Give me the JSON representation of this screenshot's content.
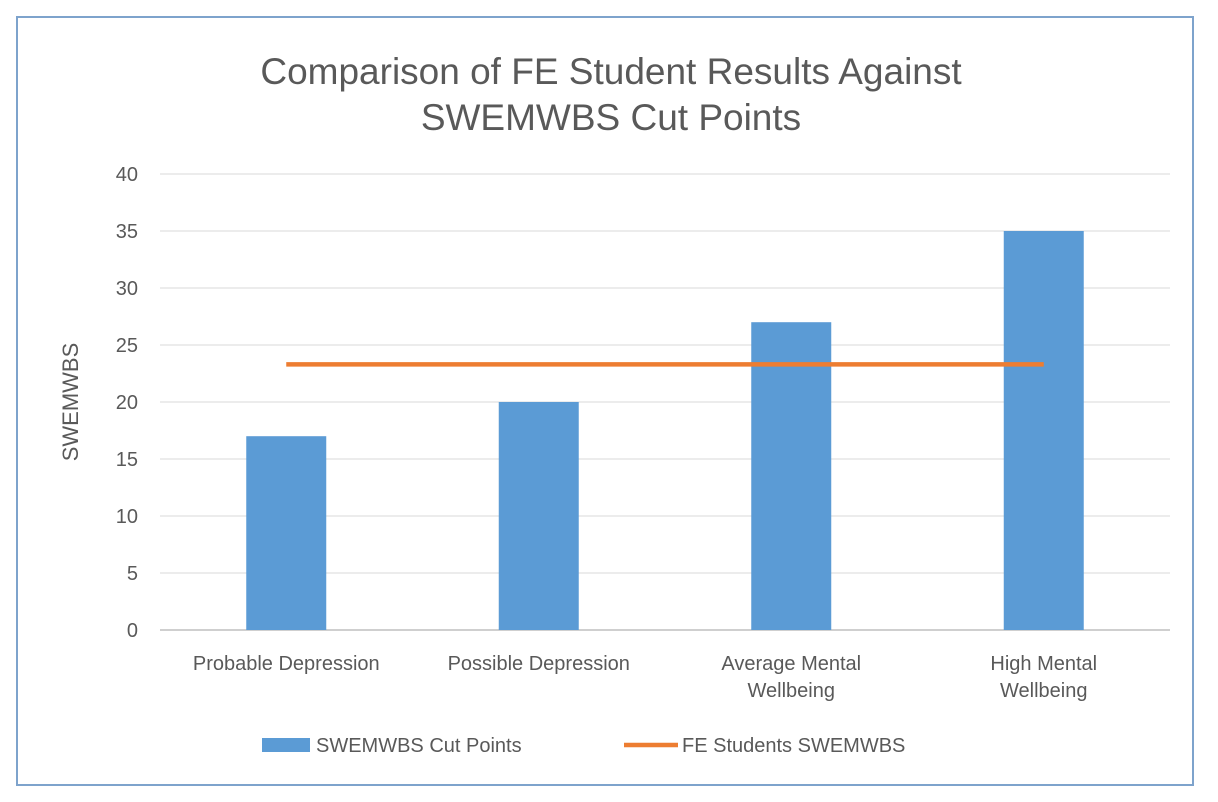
{
  "chart_data": {
    "type": "bar",
    "title": "Comparison of FE Student Results Against SWEMWBS Cut Points",
    "title_lines": [
      "Comparison of FE Student Results Against",
      "SWEMWBS Cut Points"
    ],
    "ylabel": "SWEMWBS",
    "xlabel": "",
    "categories": [
      "Probable Depression",
      "Possible Depression",
      "Average Mental Wellbeing",
      "High Mental Wellbeing"
    ],
    "category_label_lines": [
      [
        "Probable Depression"
      ],
      [
        "Possible Depression"
      ],
      [
        "Average Mental",
        "Wellbeing"
      ],
      [
        "High Mental",
        "Wellbeing"
      ]
    ],
    "ylim": [
      0,
      40
    ],
    "yticks": [
      0,
      5,
      10,
      15,
      20,
      25,
      30,
      35,
      40
    ],
    "grid": true,
    "legend_position": "bottom",
    "series": [
      {
        "name": "SWEMWBS Cut Points",
        "type": "bar",
        "color": "#5b9bd5",
        "values": [
          17,
          20,
          27,
          35
        ]
      },
      {
        "name": "FE Students SWEMWBS",
        "type": "line",
        "color": "#ed7d31",
        "values": [
          23.3,
          23.3,
          23.3,
          23.3
        ]
      }
    ]
  }
}
